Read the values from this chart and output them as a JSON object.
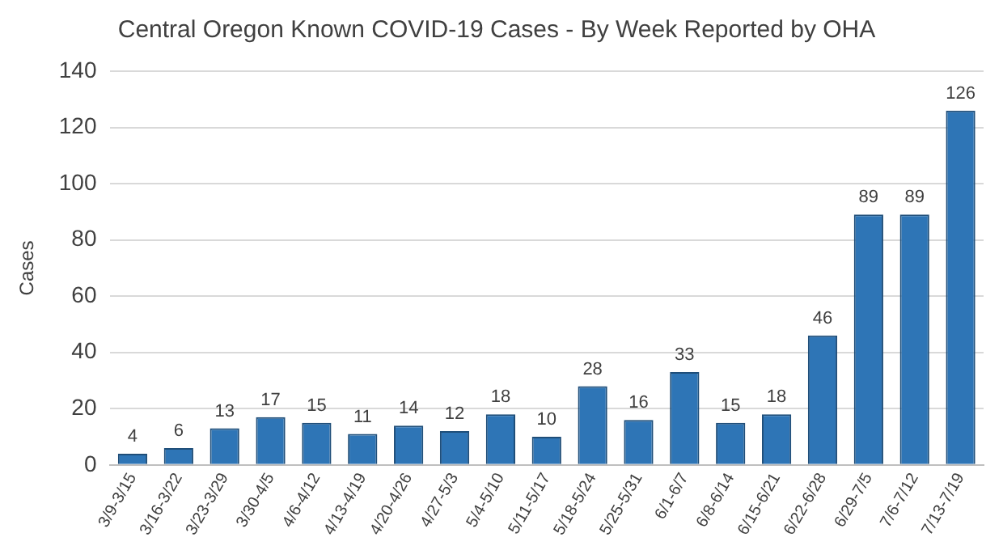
{
  "chart_data": {
    "type": "bar",
    "title": "Central Oregon Known COVID-19 Cases - By Week Reported by OHA",
    "ylabel": "Cases",
    "categories": [
      "3/9-3/15",
      "3/16-3/22",
      "3/23-3/29",
      "3/30-4/5",
      "4/6-4/12",
      "4/13-4/19",
      "4/20-4/26",
      "4/27-5/3",
      "5/4-5/10",
      "5/11-5/17",
      "5/18-5/24",
      "5/25-5/31",
      "6/1-6/7",
      "6/8-6/14",
      "6/15-6/21",
      "6/22-6/28",
      "6/29-7/5",
      "7/6-7/12",
      "7/13-7/19"
    ],
    "values": [
      4,
      6,
      13,
      17,
      15,
      11,
      14,
      12,
      18,
      10,
      28,
      16,
      33,
      15,
      18,
      46,
      89,
      89,
      126
    ],
    "color": "#2e75b6",
    "ylim": [
      0,
      140
    ],
    "yticks": [
      0,
      20,
      40,
      60,
      80,
      100,
      120,
      140
    ],
    "grid": "y",
    "data_labels": true
  }
}
